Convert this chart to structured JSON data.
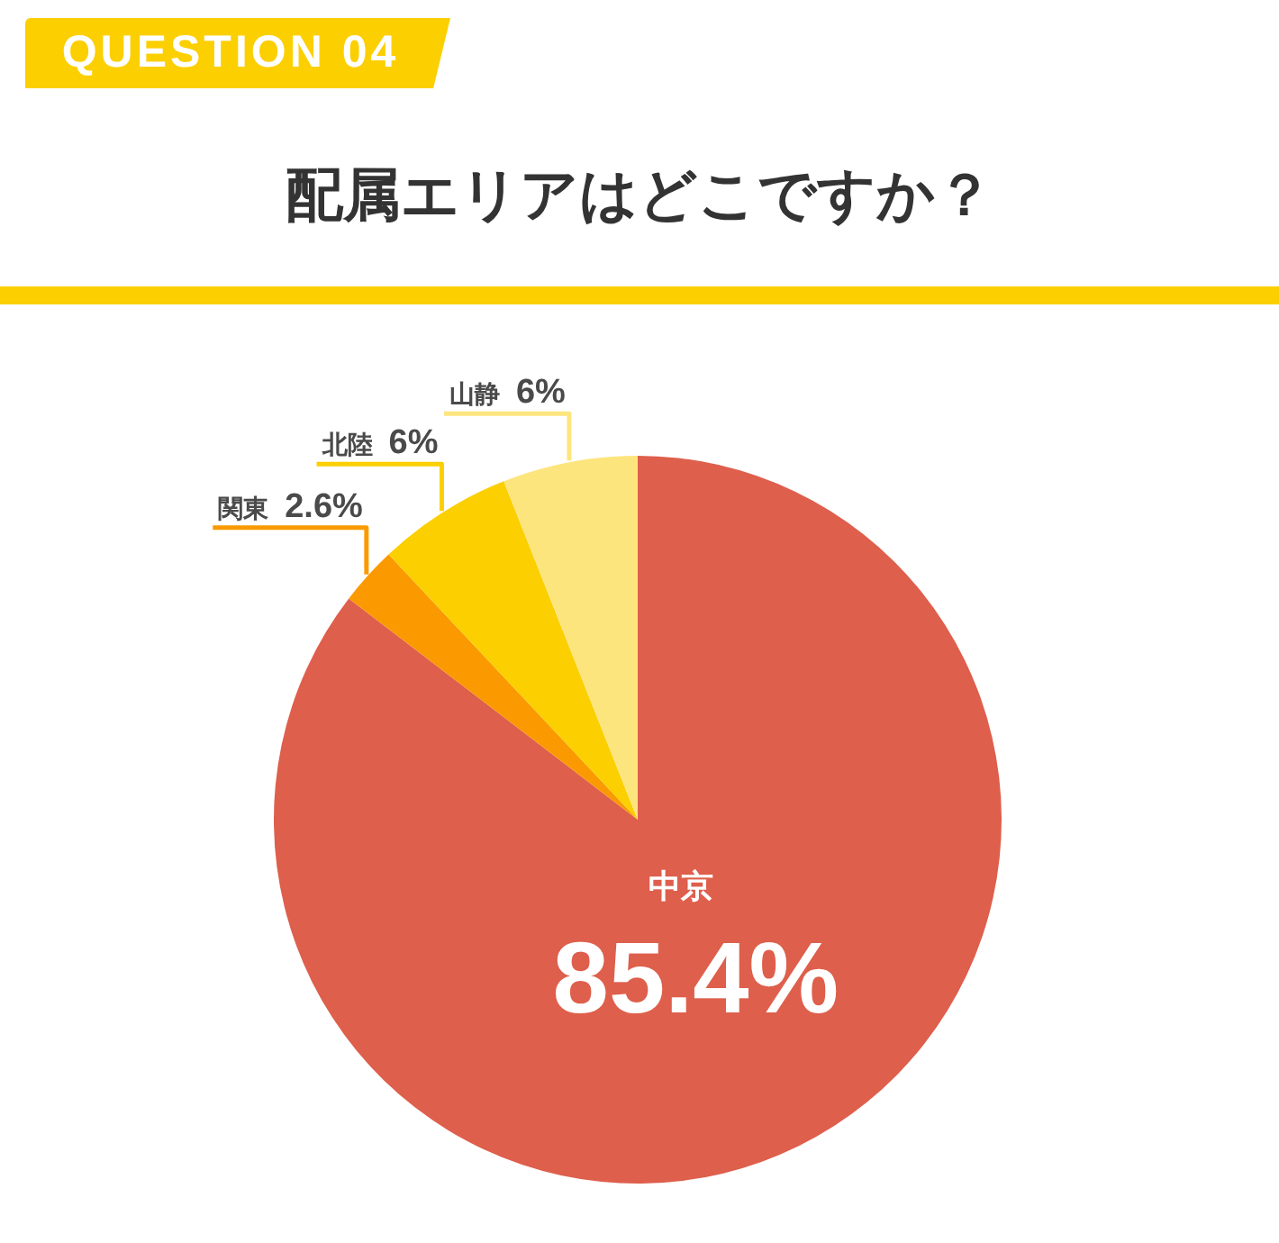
{
  "chart_data": {
    "type": "pie",
    "title": "配属エリアはどこですか？",
    "annotations": [
      "QUESTION 04"
    ],
    "categories": [
      "中京",
      "関東",
      "北陸",
      "山静"
    ],
    "values": [
      85.4,
      2.6,
      6,
      6
    ],
    "value_labels": [
      "85.4%",
      "2.6%",
      "6%",
      "6%"
    ],
    "colors": [
      "#de5f4c",
      "#fa9a00",
      "#fccf00",
      "#fde57e"
    ]
  }
}
